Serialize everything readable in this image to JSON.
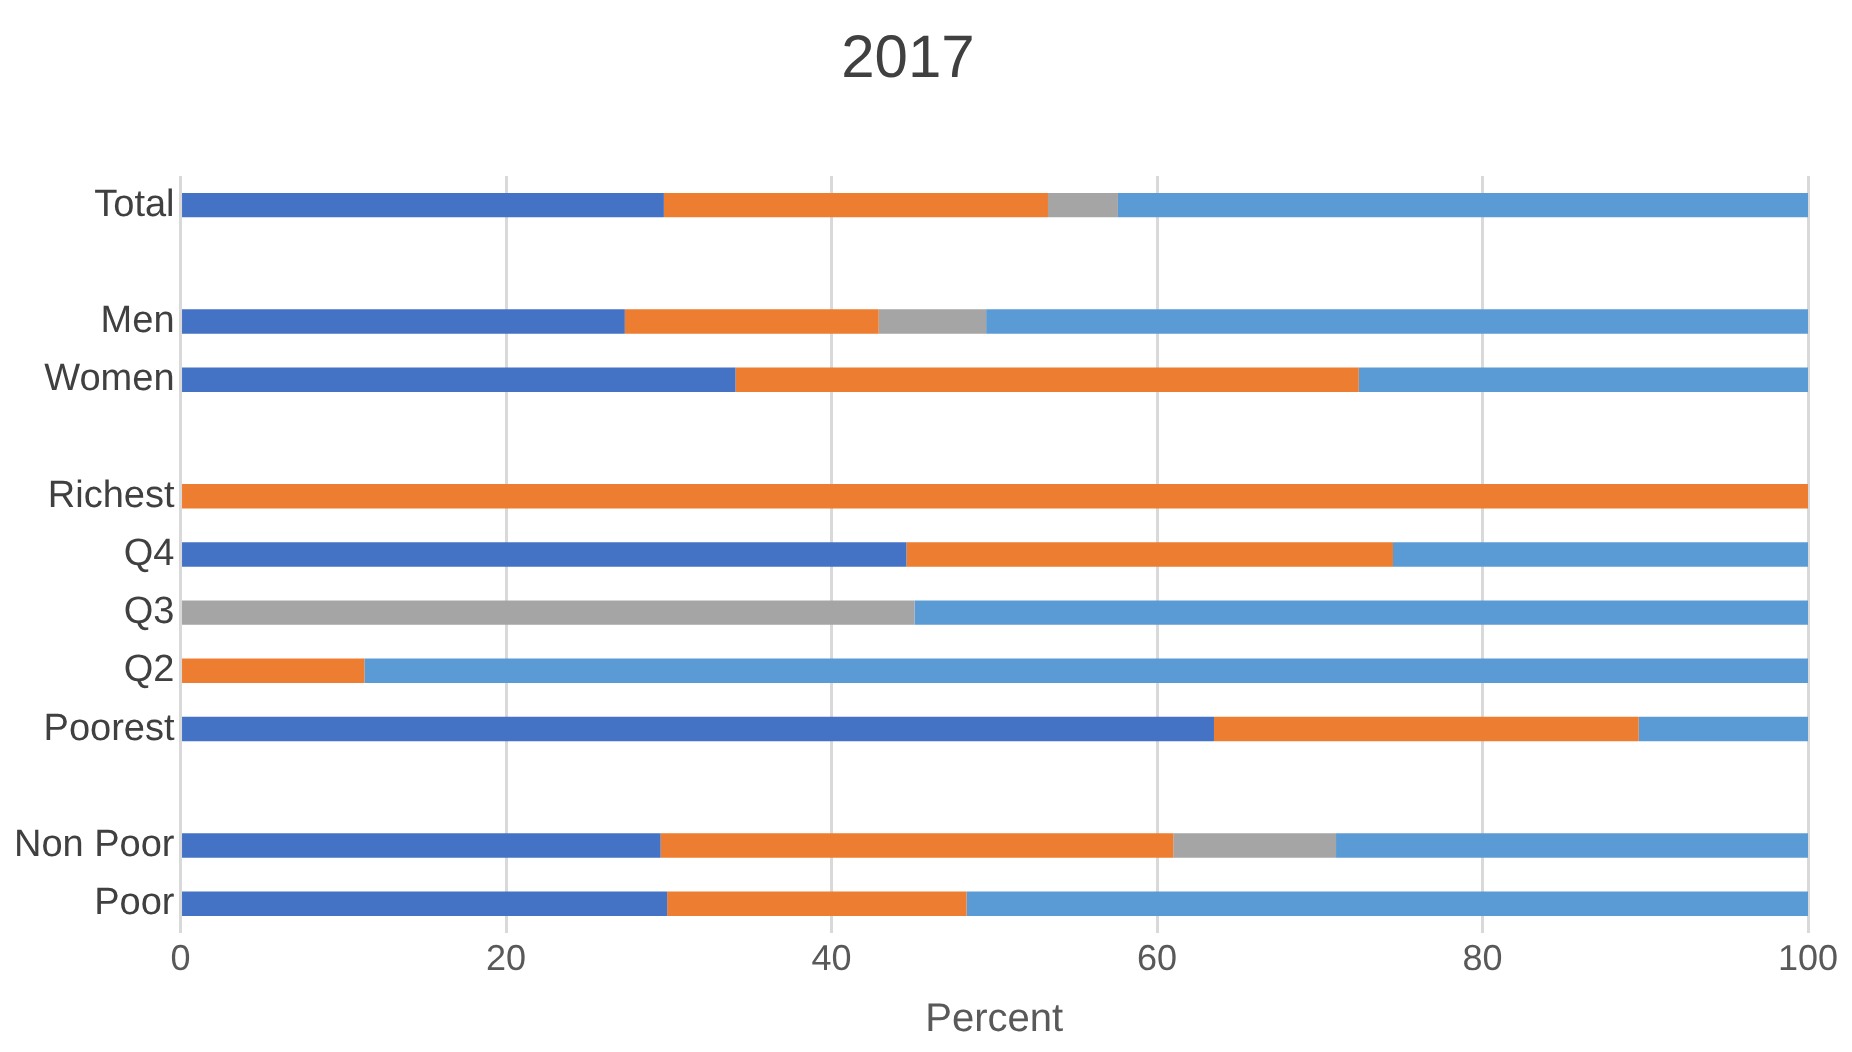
{
  "chart_data": {
    "type": "bar",
    "orientation": "horizontal",
    "stacked": true,
    "title": "2017",
    "xlabel": "Percent",
    "categories": [
      "Total",
      null,
      "Men",
      "Women",
      null,
      "Richest",
      "Q4",
      "Q3",
      "Q2",
      "Poorest",
      null,
      "Non Poor",
      "Poor"
    ],
    "series": [
      {
        "color": "#4472c4",
        "values": [
          29.7,
          null,
          27.3,
          34.1,
          null,
          0,
          44.6,
          0,
          0,
          63.5,
          null,
          29.5,
          29.9
        ]
      },
      {
        "color": "#ed7d31",
        "values": [
          23.6,
          null,
          15.6,
          38.3,
          null,
          100,
          29.9,
          0,
          11.3,
          26.1,
          null,
          31.5,
          18.4
        ]
      },
      {
        "color": "#a5a5a5",
        "values": [
          4.3,
          null,
          6.6,
          0,
          null,
          0,
          0,
          45.1,
          0,
          0,
          null,
          10.0,
          0
        ]
      },
      {
        "color": "#5b9bd5",
        "values": [
          42.4,
          null,
          50.5,
          27.6,
          null,
          0,
          25.5,
          54.9,
          88.7,
          10.4,
          null,
          29.0,
          51.7
        ]
      }
    ],
    "xlim": [
      0,
      100
    ],
    "xticks": [
      0,
      20,
      40,
      60,
      80,
      100
    ],
    "grid": "x",
    "legend": false
  }
}
